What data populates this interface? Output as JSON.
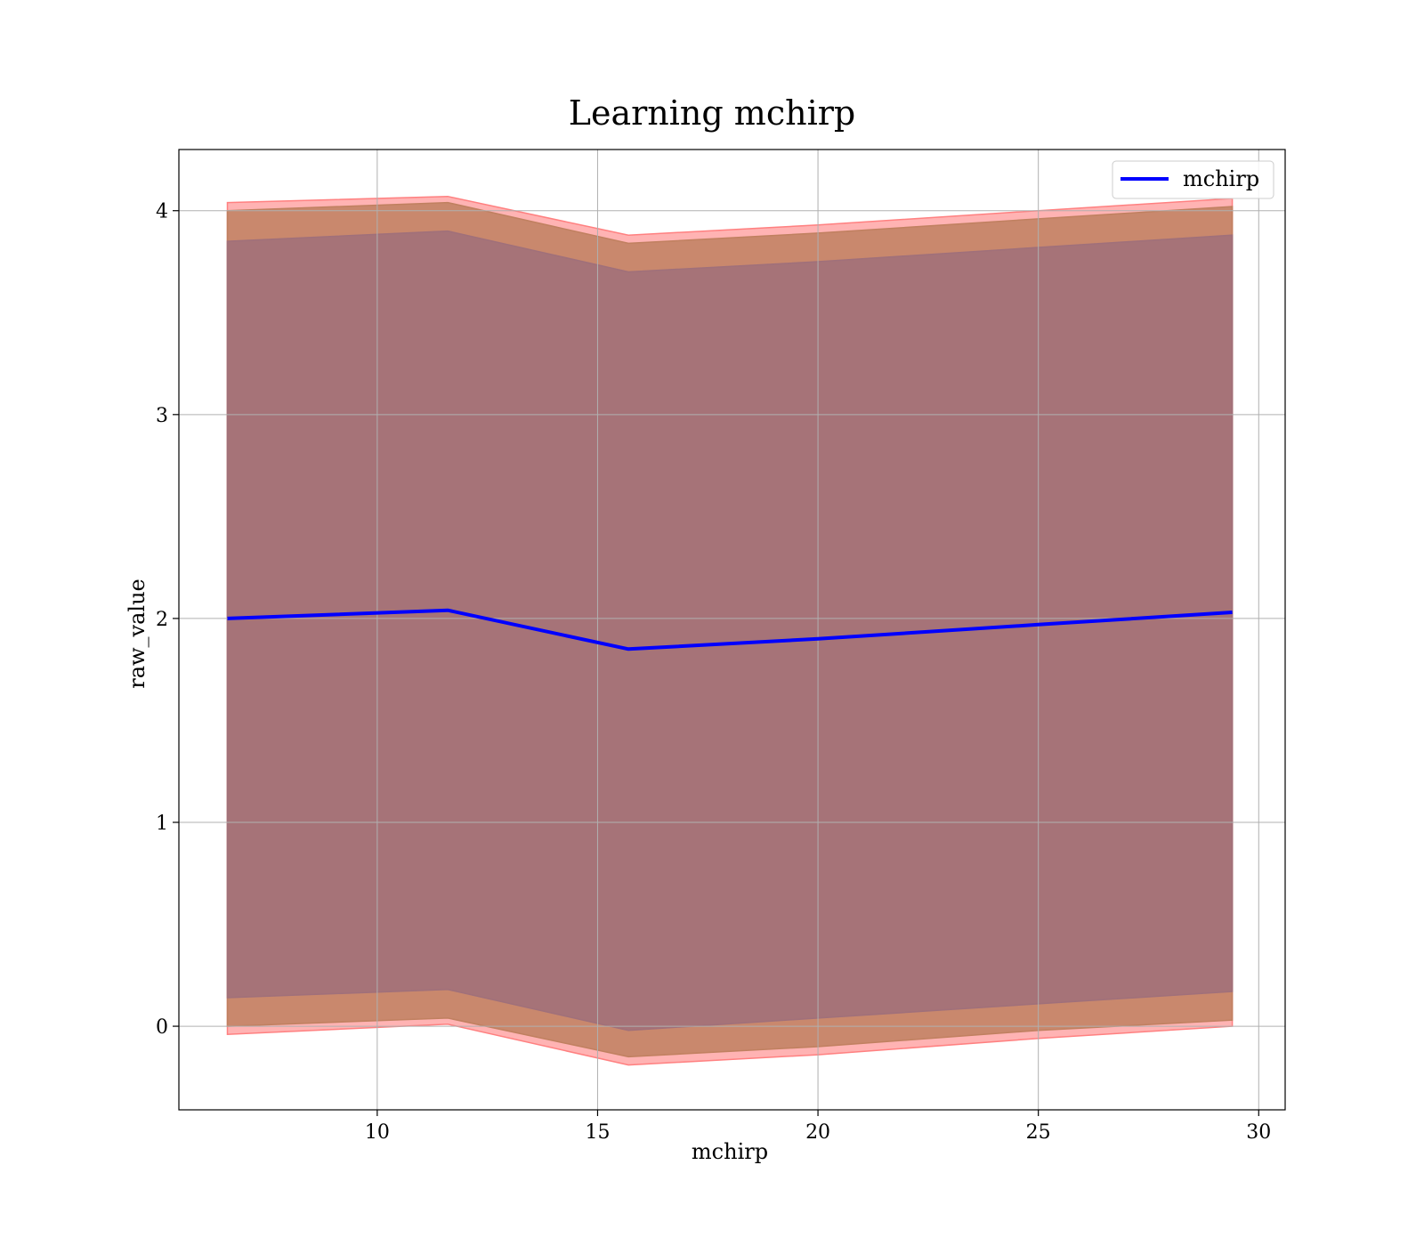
{
  "chart_data": {
    "type": "line",
    "title": "Learning mchirp",
    "xlabel": "mchirp",
    "ylabel": "raw_value",
    "xlim": [
      5.5,
      30.6
    ],
    "ylim": [
      -0.41,
      4.3
    ],
    "xticks": [
      10,
      15,
      20,
      25,
      30
    ],
    "yticks": [
      0,
      1,
      2,
      3,
      4
    ],
    "grid": true,
    "legend_position": "top-right",
    "x": [
      6.6,
      11.6,
      15.7,
      20,
      25,
      29.4
    ],
    "series": [
      {
        "name": "mchirp",
        "color": "#0000ff",
        "values": [
          2.0,
          2.04,
          1.85,
          1.9,
          1.97,
          2.03
        ]
      }
    ],
    "bands": [
      {
        "color": "#ff8080",
        "upper": [
          4.04,
          4.07,
          3.88,
          3.93,
          4.0,
          4.06
        ],
        "lower": [
          -0.04,
          0.01,
          -0.19,
          -0.14,
          -0.06,
          0.0
        ]
      },
      {
        "color": "#c08060",
        "upper": [
          4.0,
          4.04,
          3.84,
          3.89,
          3.96,
          4.02
        ],
        "lower": [
          0.0,
          0.04,
          -0.15,
          -0.1,
          -0.02,
          0.03
        ]
      },
      {
        "color": "#a0707a",
        "upper": [
          3.85,
          3.9,
          3.7,
          3.75,
          3.82,
          3.88
        ],
        "lower": [
          0.14,
          0.18,
          -0.02,
          0.04,
          0.11,
          0.17
        ]
      }
    ]
  }
}
